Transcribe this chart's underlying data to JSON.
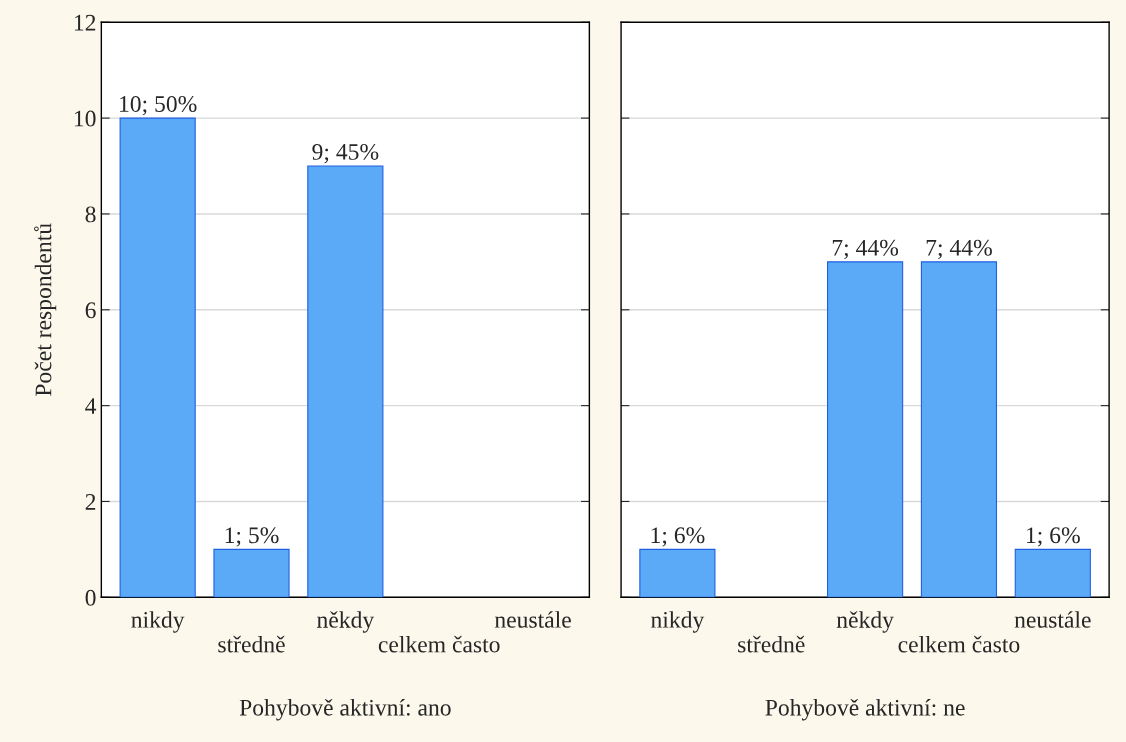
{
  "chart_data": [
    {
      "type": "bar",
      "xlabel": "Pohybově aktivní: ano",
      "ylabel": "Počet respondentů",
      "categories": [
        "nikdy",
        "středně",
        "někdy",
        "celkem často",
        "neustále"
      ],
      "values": [
        10,
        1,
        9,
        null,
        null
      ],
      "value_labels": [
        "10; 50%",
        "1; 5%",
        "9; 45%",
        null,
        null
      ],
      "color": "#5aaaf8",
      "ylim": [
        0,
        12
      ],
      "yticks": [
        0,
        2,
        4,
        6,
        8,
        10,
        12
      ],
      "grid": "y"
    },
    {
      "type": "bar",
      "xlabel": "Pohybově aktivní: ne",
      "categories": [
        "nikdy",
        "středně",
        "někdy",
        "celkem často",
        "neustále"
      ],
      "values": [
        1,
        null,
        7,
        7,
        1
      ],
      "value_labels": [
        "1; 6%",
        null,
        "7; 44%",
        "7; 44%",
        "1; 6%"
      ],
      "color": "#5aaaf8",
      "ylim": [
        0,
        12
      ],
      "yticks": [
        0,
        2,
        4,
        6,
        8,
        10,
        12
      ],
      "grid": "y",
      "tick_labels": "x"
    }
  ]
}
